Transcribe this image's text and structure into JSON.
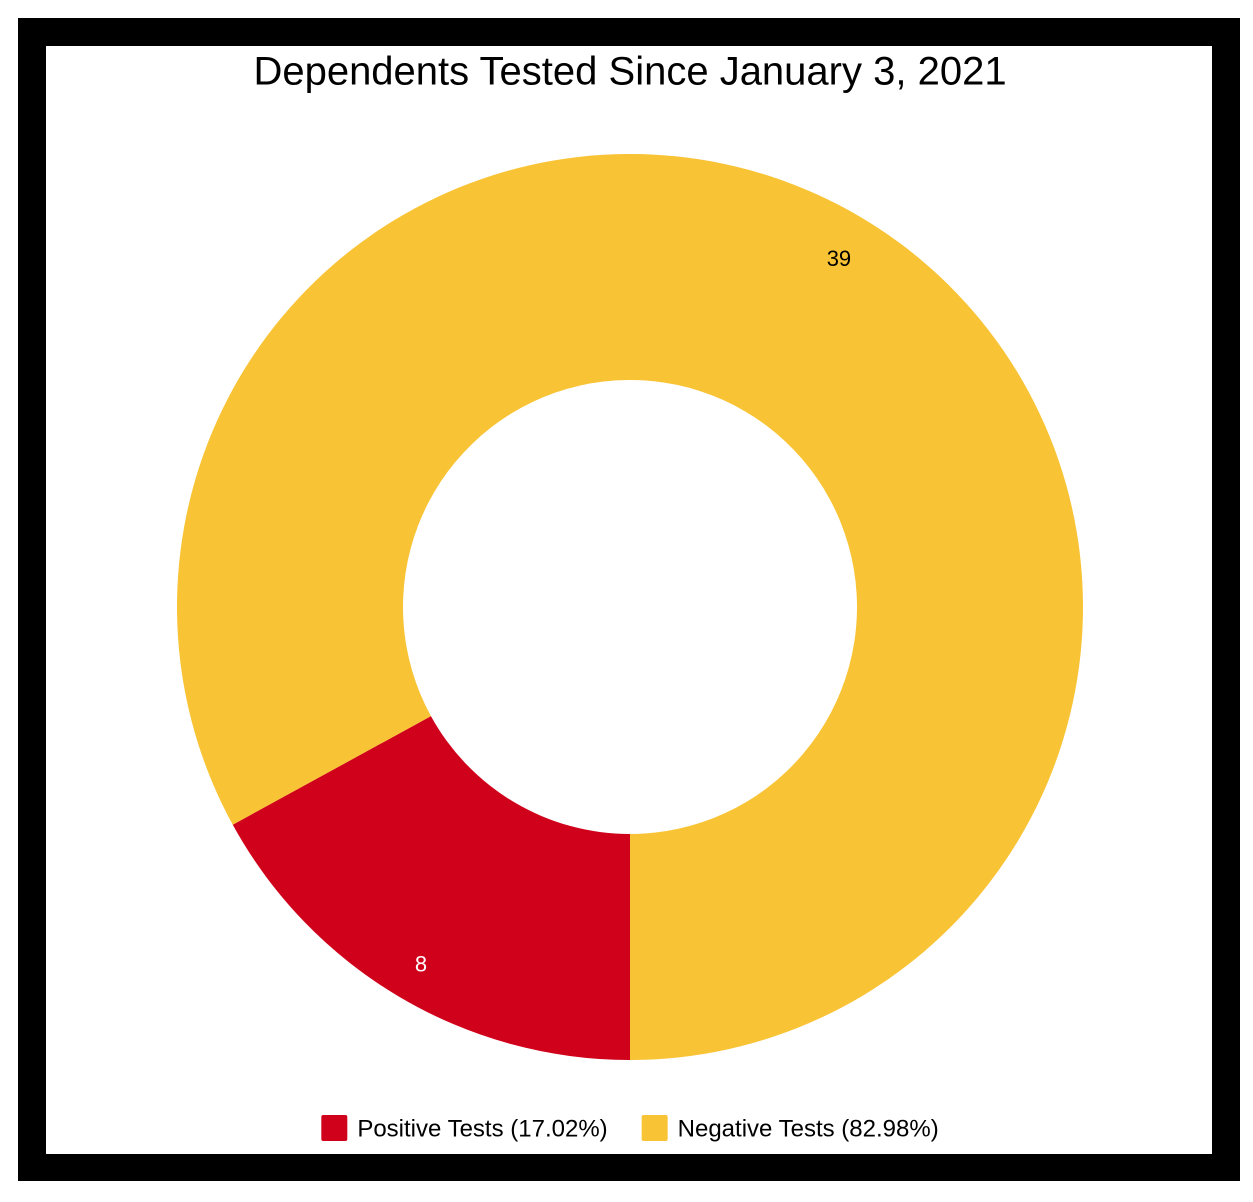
{
  "chart_data": {
    "type": "donut",
    "title": "Dependents Tested Since January 3, 2021",
    "categories": [
      "Positive Tests (17.02%)",
      "Negative Tests (82.98%)"
    ],
    "values": [
      8,
      39
    ],
    "colors": [
      "#d0021b",
      "#f8c334"
    ],
    "legend": "bottom"
  }
}
